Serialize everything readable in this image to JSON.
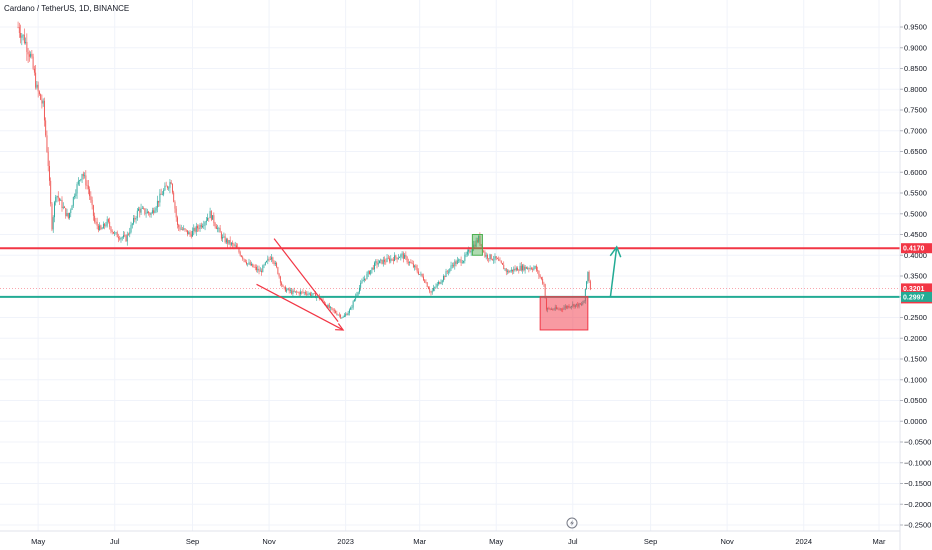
{
  "header": {
    "symbol_title": "Cardano / TetherUS, 1D, BINANCE"
  },
  "chart_data": {
    "type": "candlestick",
    "title": "Cardano / TetherUS, 1D, BINANCE",
    "ylim": [
      -0.27,
      0.99
    ],
    "y_ticks": [
      "0.9500",
      "0.9000",
      "0.8500",
      "0.8000",
      "0.7500",
      "0.7000",
      "0.6500",
      "0.6000",
      "0.5500",
      "0.5000",
      "0.4500",
      "0.4000",
      "0.3500",
      "0.3000",
      "0.2500",
      "0.2000",
      "0.1500",
      "0.1000",
      "0.0500",
      "0.0000",
      "−0.0500",
      "−0.1000",
      "−0.1500",
      "−0.2000",
      "−0.2500"
    ],
    "x_ticks": [
      "May",
      "Jul",
      "Sep",
      "Nov",
      "2023",
      "Mar",
      "May",
      "Jul",
      "Sep",
      "Nov",
      "2024",
      "Mar"
    ],
    "price_series": [
      [
        "2022-04-15",
        0.95
      ],
      [
        "2022-04-20",
        0.92
      ],
      [
        "2022-04-25",
        0.88
      ],
      [
        "2022-04-30",
        0.8
      ],
      [
        "2022-05-05",
        0.76
      ],
      [
        "2022-05-09",
        0.62
      ],
      [
        "2022-05-12",
        0.47
      ],
      [
        "2022-05-15",
        0.55
      ],
      [
        "2022-05-20",
        0.52
      ],
      [
        "2022-05-25",
        0.49
      ],
      [
        "2022-05-30",
        0.55
      ],
      [
        "2022-06-05",
        0.6
      ],
      [
        "2022-06-10",
        0.56
      ],
      [
        "2022-06-15",
        0.48
      ],
      [
        "2022-06-20",
        0.46
      ],
      [
        "2022-06-25",
        0.48
      ],
      [
        "2022-07-01",
        0.45
      ],
      [
        "2022-07-10",
        0.44
      ],
      [
        "2022-07-20",
        0.51
      ],
      [
        "2022-07-30",
        0.5
      ],
      [
        "2022-08-08",
        0.55
      ],
      [
        "2022-08-15",
        0.58
      ],
      [
        "2022-08-20",
        0.47
      ],
      [
        "2022-08-30",
        0.45
      ],
      [
        "2022-09-10",
        0.48
      ],
      [
        "2022-09-15",
        0.5
      ],
      [
        "2022-09-25",
        0.44
      ],
      [
        "2022-10-05",
        0.42
      ],
      [
        "2022-10-15",
        0.38
      ],
      [
        "2022-10-25",
        0.36
      ],
      [
        "2022-11-03",
        0.4
      ],
      [
        "2022-11-08",
        0.36
      ],
      [
        "2022-11-12",
        0.32
      ],
      [
        "2022-11-20",
        0.31
      ],
      [
        "2022-11-30",
        0.31
      ],
      [
        "2022-12-10",
        0.3
      ],
      [
        "2022-12-20",
        0.27
      ],
      [
        "2022-12-30",
        0.25
      ],
      [
        "2023-01-05",
        0.27
      ],
      [
        "2023-01-10",
        0.31
      ],
      [
        "2023-01-15",
        0.34
      ],
      [
        "2023-01-25",
        0.38
      ],
      [
        "2023-02-05",
        0.39
      ],
      [
        "2023-02-15",
        0.4
      ],
      [
        "2023-02-25",
        0.37
      ],
      [
        "2023-03-05",
        0.34
      ],
      [
        "2023-03-10",
        0.31
      ],
      [
        "2023-03-18",
        0.34
      ],
      [
        "2023-03-28",
        0.38
      ],
      [
        "2023-04-05",
        0.39
      ],
      [
        "2023-04-12",
        0.42
      ],
      [
        "2023-04-17",
        0.44
      ],
      [
        "2023-04-22",
        0.4
      ],
      [
        "2023-05-01",
        0.39
      ],
      [
        "2023-05-10",
        0.36
      ],
      [
        "2023-05-20",
        0.37
      ],
      [
        "2023-06-01",
        0.37
      ],
      [
        "2023-06-08",
        0.33
      ],
      [
        "2023-06-10",
        0.27
      ],
      [
        "2023-06-20",
        0.27
      ],
      [
        "2023-06-30",
        0.28
      ],
      [
        "2023-07-08",
        0.28
      ],
      [
        "2023-07-10",
        0.29
      ],
      [
        "2023-07-13",
        0.36
      ],
      [
        "2023-07-15",
        0.32
      ]
    ],
    "price_labels": [
      {
        "text": "0.4170",
        "value": 0.417,
        "color": "#f23645"
      },
      {
        "text": "0.3201",
        "text2": "20:01:52",
        "value": 0.3201,
        "color": "#f23645"
      },
      {
        "text": "0.2997",
        "value": 0.2997,
        "color": "#22ab94"
      }
    ],
    "resistance_level": 0.417,
    "support_level": 0.2997,
    "annotations": {
      "resistance_color": "#f23645",
      "support_color": "#22ab94",
      "wedge_color": "#f23645",
      "projection_arrow_color": "#22ab94",
      "green_box_color": "#4caf50",
      "red_box_color": "#f23645",
      "green_box": {
        "x_start": "2023-04-12",
        "x_end": "2023-04-20",
        "y_low": 0.4,
        "y_high": 0.45
      },
      "red_box": {
        "x_start": "2023-06-05",
        "x_end": "2023-07-13",
        "y_low": 0.22,
        "y_high": 0.3
      },
      "wedge_upper": [
        [
          "2022-11-05",
          0.44
        ],
        [
          "2022-12-26",
          0.24
        ]
      ],
      "wedge_lower": [
        [
          "2022-10-22",
          0.33
        ],
        [
          "2022-12-30",
          0.22
        ]
      ],
      "projection_arrow": [
        [
          "2023-07-31",
          0.3
        ],
        [
          "2023-08-05",
          0.42
        ]
      ]
    },
    "grid": true,
    "time_axis_icon": "lightning-icon"
  }
}
